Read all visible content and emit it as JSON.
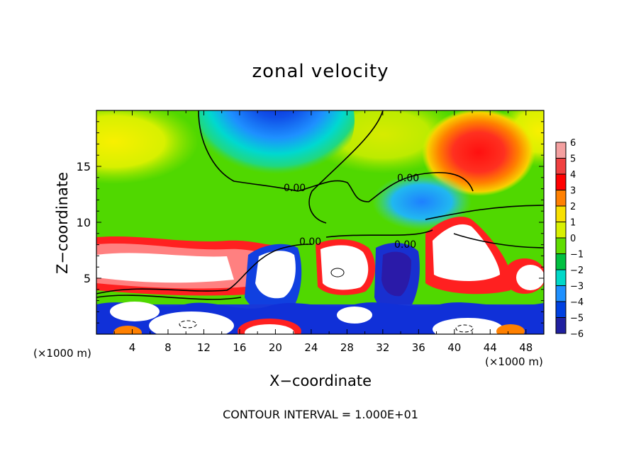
{
  "chart_data": {
    "type": "heatmap",
    "title": "zonal velocity",
    "xlabel": "X−coordinate",
    "ylabel": "Z−coordinate",
    "x_unit_label": "(×1000 m)",
    "x_ticks": [
      "4",
      "8",
      "12",
      "16",
      "20",
      "24",
      "28",
      "32",
      "36",
      "40",
      "44",
      "48"
    ],
    "y_ticks": [
      "5",
      "10",
      "15"
    ],
    "xlim": [
      0,
      50
    ],
    "ylim": [
      0,
      20
    ],
    "colorbar": {
      "labels": [
        "6",
        "5",
        "4",
        "3",
        "2",
        "1",
        "0",
        "−1",
        "−2",
        "−3",
        "−4",
        "−5",
        "−6"
      ],
      "colors": [
        "#f4a0a0",
        "#f04040",
        "#ff0000",
        "#ff8000",
        "#f8e000",
        "#d8f000",
        "#60dd00",
        "#00c040",
        "#00d8c8",
        "#1e90ff",
        "#0040e0",
        "#2020a0",
        "#6000a0"
      ]
    },
    "contour_labels": [
      "0.00",
      "0.00",
      "0.00",
      "0.00"
    ],
    "contour_interval_text": "CONTOUR INTERVAL = 1.000E+01",
    "grid": false,
    "legend_position": "right"
  }
}
